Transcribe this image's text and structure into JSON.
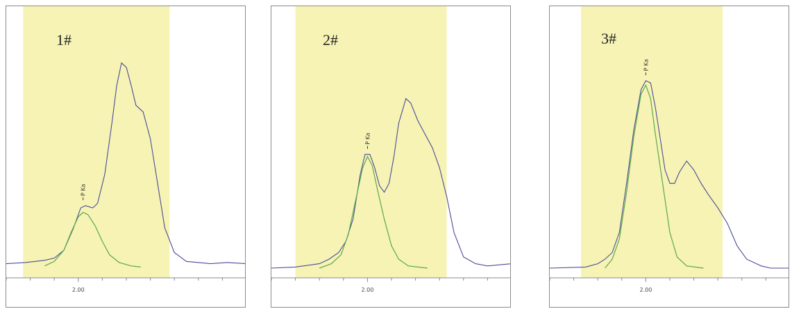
{
  "colors": {
    "highlight": "#f6f3b5",
    "trace": "#4a4a96",
    "fit": "#5aa84a",
    "axis": "#888888",
    "frame": "#8a8a8a"
  },
  "chart_data": [
    {
      "type": "line",
      "title": "",
      "xlabel": "",
      "ylabel": "",
      "panel_label": "1#",
      "peak_label": "P Ka",
      "tick_label": "2.00",
      "tick_value": 2.0,
      "xlim": [
        1.7,
        2.7
      ],
      "ylim": [
        0,
        1.0
      ],
      "highlight_range": [
        1.77,
        2.38
      ],
      "grid": false,
      "series": [
        {
          "values": [
            [
              1.7,
              0.02
            ],
            [
              1.78,
              0.025
            ],
            [
              1.86,
              0.035
            ],
            [
              1.9,
              0.045
            ],
            [
              1.94,
              0.08
            ],
            [
              1.98,
              0.18
            ],
            [
              2.01,
              0.27
            ],
            [
              2.03,
              0.28
            ],
            [
              2.06,
              0.27
            ],
            [
              2.08,
              0.29
            ],
            [
              2.11,
              0.42
            ],
            [
              2.14,
              0.65
            ],
            [
              2.16,
              0.82
            ],
            [
              2.18,
              0.92
            ],
            [
              2.2,
              0.9
            ],
            [
              2.22,
              0.82
            ],
            [
              2.24,
              0.73
            ],
            [
              2.27,
              0.7
            ],
            [
              2.3,
              0.58
            ],
            [
              2.33,
              0.38
            ],
            [
              2.36,
              0.18
            ],
            [
              2.4,
              0.07
            ],
            [
              2.45,
              0.03
            ],
            [
              2.55,
              0.02
            ],
            [
              2.62,
              0.025
            ],
            [
              2.7,
              0.02
            ]
          ]
        },
        {
          "values": [
            [
              1.86,
              0.01
            ],
            [
              1.9,
              0.03
            ],
            [
              1.94,
              0.08
            ],
            [
              1.97,
              0.16
            ],
            [
              2.0,
              0.23
            ],
            [
              2.02,
              0.25
            ],
            [
              2.04,
              0.24
            ],
            [
              2.07,
              0.19
            ],
            [
              2.1,
              0.12
            ],
            [
              2.13,
              0.06
            ],
            [
              2.17,
              0.025
            ],
            [
              2.22,
              0.01
            ],
            [
              2.26,
              0.005
            ]
          ]
        }
      ]
    },
    {
      "type": "line",
      "title": "",
      "xlabel": "",
      "ylabel": "",
      "panel_label": "2#",
      "peak_label": "P Ka",
      "tick_label": "2.00",
      "tick_value": 2.0,
      "xlim": [
        1.6,
        2.6
      ],
      "ylim": [
        0,
        1.0
      ],
      "highlight_range": [
        1.7,
        2.33
      ],
      "grid": false,
      "series": [
        {
          "values": [
            [
              1.6,
              0.0
            ],
            [
              1.7,
              0.005
            ],
            [
              1.8,
              0.02
            ],
            [
              1.84,
              0.04
            ],
            [
              1.88,
              0.07
            ],
            [
              1.91,
              0.12
            ],
            [
              1.94,
              0.22
            ],
            [
              1.97,
              0.42
            ],
            [
              1.99,
              0.51
            ],
            [
              2.01,
              0.51
            ],
            [
              2.03,
              0.45
            ],
            [
              2.05,
              0.37
            ],
            [
              2.07,
              0.34
            ],
            [
              2.09,
              0.38
            ],
            [
              2.11,
              0.5
            ],
            [
              2.13,
              0.65
            ],
            [
              2.16,
              0.76
            ],
            [
              2.18,
              0.74
            ],
            [
              2.21,
              0.66
            ],
            [
              2.24,
              0.6
            ],
            [
              2.27,
              0.54
            ],
            [
              2.3,
              0.45
            ],
            [
              2.33,
              0.32
            ],
            [
              2.36,
              0.16
            ],
            [
              2.4,
              0.05
            ],
            [
              2.45,
              0.02
            ],
            [
              2.5,
              0.01
            ],
            [
              2.6,
              0.02
            ]
          ]
        },
        {
          "values": [
            [
              1.8,
              0.0
            ],
            [
              1.85,
              0.02
            ],
            [
              1.89,
              0.06
            ],
            [
              1.92,
              0.15
            ],
            [
              1.95,
              0.3
            ],
            [
              1.98,
              0.45
            ],
            [
              2.0,
              0.5
            ],
            [
              2.02,
              0.46
            ],
            [
              2.04,
              0.36
            ],
            [
              2.07,
              0.22
            ],
            [
              2.1,
              0.1
            ],
            [
              2.13,
              0.04
            ],
            [
              2.17,
              0.01
            ],
            [
              2.25,
              0.0
            ]
          ]
        }
      ]
    },
    {
      "type": "line",
      "title": "",
      "xlabel": "",
      "ylabel": "",
      "panel_label": "3#",
      "peak_label": "P Ka",
      "tick_label": "2.00",
      "tick_value": 2.0,
      "xlim": [
        1.6,
        2.6
      ],
      "ylim": [
        0,
        1.0
      ],
      "highlight_range": [
        1.73,
        2.32
      ],
      "grid": false,
      "series": [
        {
          "values": [
            [
              1.6,
              0.0
            ],
            [
              1.75,
              0.005
            ],
            [
              1.8,
              0.02
            ],
            [
              1.83,
              0.04
            ],
            [
              1.86,
              0.07
            ],
            [
              1.89,
              0.16
            ],
            [
              1.92,
              0.38
            ],
            [
              1.95,
              0.62
            ],
            [
              1.98,
              0.8
            ],
            [
              2.0,
              0.84
            ],
            [
              2.02,
              0.83
            ],
            [
              2.04,
              0.72
            ],
            [
              2.06,
              0.58
            ],
            [
              2.08,
              0.44
            ],
            [
              2.1,
              0.38
            ],
            [
              2.12,
              0.38
            ],
            [
              2.14,
              0.43
            ],
            [
              2.17,
              0.48
            ],
            [
              2.2,
              0.44
            ],
            [
              2.23,
              0.38
            ],
            [
              2.26,
              0.33
            ],
            [
              2.3,
              0.27
            ],
            [
              2.34,
              0.2
            ],
            [
              2.38,
              0.1
            ],
            [
              2.42,
              0.04
            ],
            [
              2.48,
              0.01
            ],
            [
              2.52,
              0.0
            ],
            [
              2.6,
              0.0
            ]
          ]
        },
        {
          "values": [
            [
              1.83,
              0.0
            ],
            [
              1.86,
              0.04
            ],
            [
              1.89,
              0.13
            ],
            [
              1.92,
              0.34
            ],
            [
              1.95,
              0.59
            ],
            [
              1.98,
              0.78
            ],
            [
              2.0,
              0.82
            ],
            [
              2.02,
              0.76
            ],
            [
              2.04,
              0.6
            ],
            [
              2.07,
              0.38
            ],
            [
              2.1,
              0.16
            ],
            [
              2.13,
              0.05
            ],
            [
              2.17,
              0.01
            ],
            [
              2.24,
              0.0
            ]
          ]
        }
      ]
    }
  ]
}
